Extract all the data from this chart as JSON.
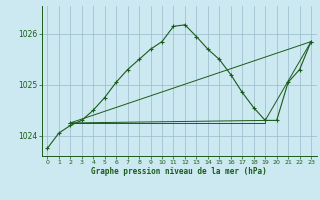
{
  "title": "Graphe pression niveau de la mer (hPa)",
  "background_color": "#cce8f0",
  "line_color": "#1a5c1a",
  "grid_color": "#99bbcc",
  "x_ticks": [
    0,
    1,
    2,
    3,
    4,
    5,
    6,
    7,
    8,
    9,
    10,
    11,
    12,
    13,
    14,
    15,
    16,
    17,
    18,
    19,
    20,
    21,
    22,
    23
  ],
  "y_ticks": [
    1024,
    1025,
    1026
  ],
  "ylim": [
    1023.6,
    1026.55
  ],
  "xlim": [
    -0.5,
    23.5
  ],
  "series1": {
    "x": [
      0,
      1,
      2,
      3,
      4,
      5,
      6,
      7,
      8,
      9,
      10,
      11,
      12,
      13,
      14,
      15,
      16,
      17,
      18,
      19,
      20,
      21,
      22,
      23
    ],
    "y": [
      1023.75,
      1024.05,
      1024.2,
      1024.3,
      1024.5,
      1024.75,
      1025.05,
      1025.3,
      1025.5,
      1025.7,
      1025.85,
      1026.15,
      1026.18,
      1025.95,
      1025.7,
      1025.5,
      1025.2,
      1024.85,
      1024.55,
      1024.3,
      1024.3,
      1025.05,
      1025.3,
      1025.85
    ]
  },
  "series2_triangle": {
    "x": [
      2,
      19,
      23,
      2
    ],
    "y": [
      1024.25,
      1024.3,
      1025.85,
      1024.25
    ]
  },
  "series3_flat": {
    "x": [
      2,
      19
    ],
    "y": [
      1024.25,
      1024.25
    ]
  }
}
